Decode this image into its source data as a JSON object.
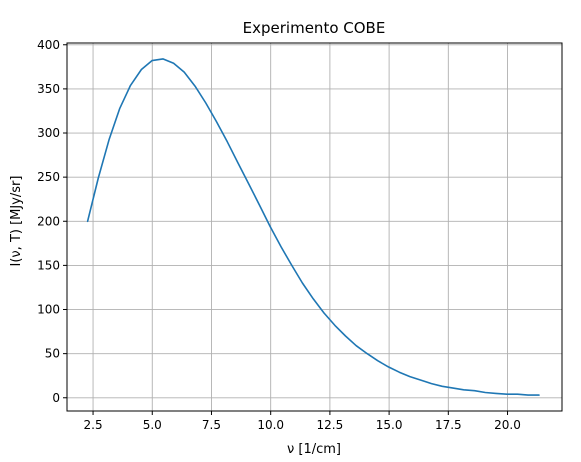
{
  "chart_data": {
    "type": "line",
    "title": "Experimento COBE",
    "xlabel": "ν [1/cm]",
    "ylabel": "I(ν, T) [MJy/sr]",
    "xlim": [
      1.4,
      22.3
    ],
    "ylim": [
      -15,
      402
    ],
    "xticks": [
      2.5,
      5.0,
      7.5,
      10.0,
      12.5,
      15.0,
      17.5,
      20.0
    ],
    "xtick_labels": [
      "2.5",
      "5.0",
      "7.5",
      "10.0",
      "12.5",
      "15.0",
      "17.5",
      "20.0"
    ],
    "yticks": [
      0,
      50,
      100,
      150,
      200,
      250,
      300,
      350,
      400
    ],
    "ytick_labels": [
      "0",
      "50",
      "100",
      "150",
      "200",
      "250",
      "300",
      "350",
      "400"
    ],
    "grid": true,
    "legend": false,
    "series": [
      {
        "color": "#1f77b4",
        "x": [
          2.27,
          2.72,
          3.18,
          3.63,
          4.08,
          4.54,
          4.99,
          5.45,
          5.9,
          6.35,
          6.81,
          7.26,
          7.71,
          8.17,
          8.62,
          9.08,
          9.53,
          9.98,
          10.44,
          10.89,
          11.34,
          11.8,
          12.25,
          12.71,
          13.16,
          13.61,
          14.07,
          14.52,
          14.97,
          15.43,
          15.88,
          16.34,
          16.79,
          17.24,
          17.7,
          18.15,
          18.61,
          19.06,
          19.51,
          19.97,
          20.42,
          20.87,
          21.33
        ],
        "y": [
          200,
          249,
          293,
          328,
          354,
          372,
          382,
          384,
          379,
          369,
          353,
          334,
          313,
          290,
          266,
          242,
          218,
          194,
          171,
          150,
          130,
          112,
          96,
          82,
          70,
          59,
          50,
          42,
          35,
          29,
          24,
          20,
          16,
          13,
          11,
          9,
          8,
          6,
          5,
          4,
          4,
          3,
          3
        ]
      }
    ]
  }
}
